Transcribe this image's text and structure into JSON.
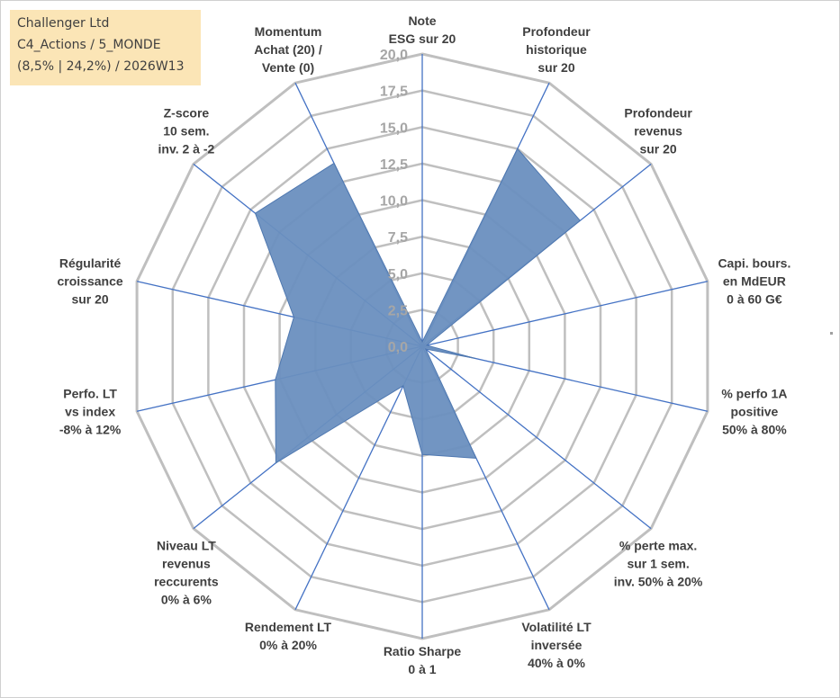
{
  "info": {
    "company": "Challenger Ltd",
    "portfolio": "C4_Actions / 5_MONDE",
    "stats": "(8,5% | 24,2%) / 2026W13"
  },
  "colors": {
    "fill": "#6a8fbf",
    "fill_stroke": "#4f78b0",
    "spoke": "#4472c4",
    "grid": "#bfbfbf",
    "info_bg": "#fbe5b6"
  },
  "chart_data": {
    "type": "radar",
    "rmin": 0,
    "rmax": 20,
    "ticks": [
      "0,0",
      "2,5",
      "5,0",
      "7,5",
      "10,0",
      "12,5",
      "15,0",
      "17,5",
      "20,0"
    ],
    "axes": [
      {
        "label": [
          "Note",
          "ESG sur 20"
        ],
        "value": 0.3
      },
      {
        "label": [
          "Profondeur",
          "historique",
          "sur 20"
        ],
        "value": 15.0
      },
      {
        "label": [
          "Profondeur",
          "revenus",
          "sur 20"
        ],
        "value": 13.8
      },
      {
        "label": [
          "Capi. bours.",
          "en MdEUR",
          "0 à 60 G€"
        ],
        "value": 0.3
      },
      {
        "label": [
          "% perfo 1A",
          "positive",
          "50% à 80%"
        ],
        "value": 3.7
      },
      {
        "label": [
          "% perte max.",
          "sur 1 sem.",
          "inv. 50% à 20%"
        ],
        "value": 0.3
      },
      {
        "label": [
          "Volatilité LT",
          "inversée",
          "40% à 0%"
        ],
        "value": 8.5
      },
      {
        "label": [
          "Ratio Sharpe",
          "0 à 1"
        ],
        "value": 7.4
      },
      {
        "label": [
          "Rendement LT",
          "0% à 20%"
        ],
        "value": 3.0
      },
      {
        "label": [
          "Niveau LT",
          "revenus",
          "reccurents",
          "0% à 6%"
        ],
        "value": 12.8
      },
      {
        "label": [
          "Perfo. LT",
          "vs index",
          "-8% à 12%"
        ],
        "value": 10.3
      },
      {
        "label": [
          "Régularité",
          "croissance",
          "sur 20"
        ],
        "value": 9.0
      },
      {
        "label": [
          "Z-score",
          "10 sem.",
          "inv. 2 à -2"
        ],
        "value": 14.6
      },
      {
        "label": [
          "Momentum",
          "Achat (20) /",
          "Vente (0)"
        ],
        "value": 13.9
      }
    ]
  }
}
